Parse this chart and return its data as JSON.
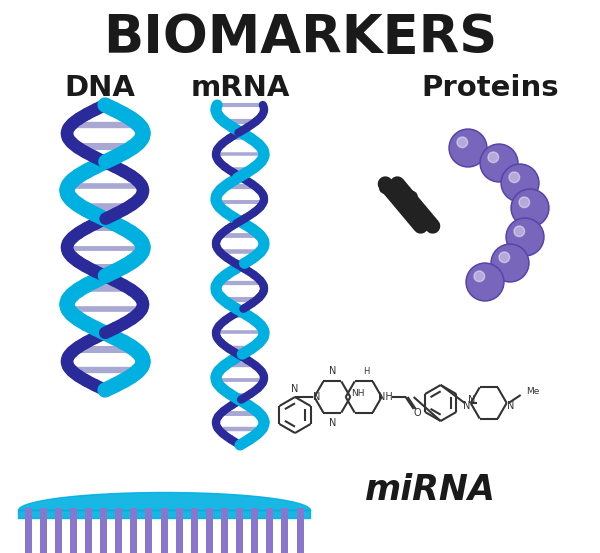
{
  "title": "BIOMARKERS",
  "title_fontsize": 38,
  "title_color": "#1a1a1a",
  "label_dna": "DNA",
  "label_mrna": "mRNA",
  "label_proteins": "Proteins",
  "label_mirna": "miRNA",
  "label_fontsize": 21,
  "bg_color": "#ffffff",
  "helix_blue": "#00b0e0",
  "helix_purple": "#2a2a9a",
  "helix_rung": "#9999cc",
  "protein_color": "#7766bb",
  "antibody_color": "#222222",
  "mirna_bar_color": "#8877cc",
  "mirna_wave_color": "#00b0e0",
  "chem_color": "#333333"
}
